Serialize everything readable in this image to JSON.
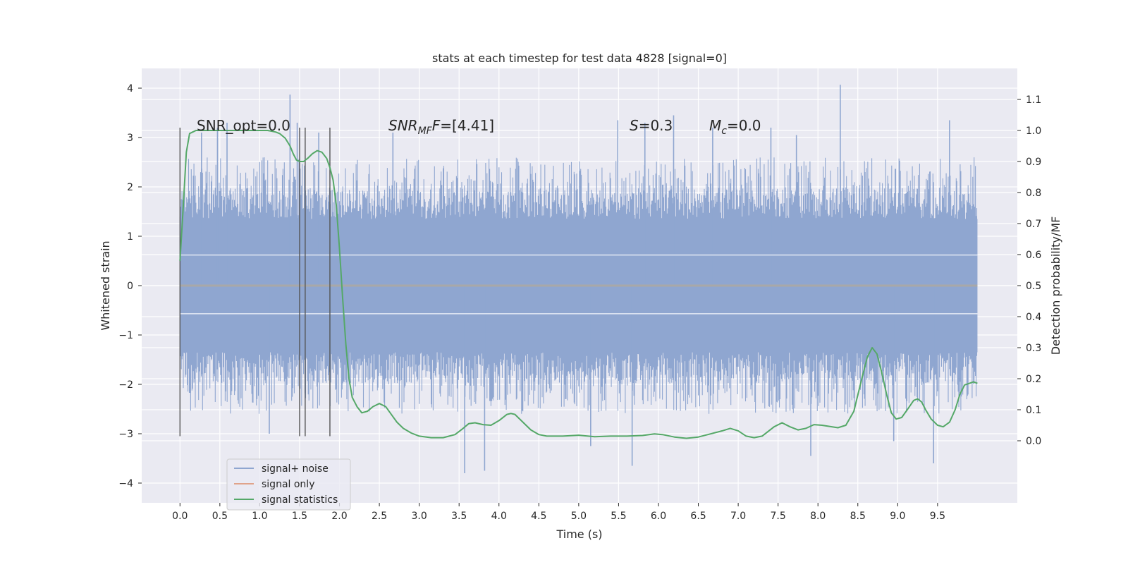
{
  "chart_data": {
    "type": "line",
    "title": "stats at each timestep for test data 4828 [signal=0]",
    "xlabel": "Time (s)",
    "ylabel": "Whitened strain",
    "y2label": "Detection probability/MF",
    "xlim": [
      -0.48,
      10.5
    ],
    "ylim": [
      -4.4,
      4.4
    ],
    "y2lim": [
      -0.2,
      1.2
    ],
    "xticks": [
      0.0,
      0.5,
      1.0,
      1.5,
      2.0,
      2.5,
      3.0,
      3.5,
      4.0,
      4.5,
      5.0,
      5.5,
      6.0,
      6.5,
      7.0,
      7.5,
      8.0,
      8.5,
      9.0,
      9.5
    ],
    "xtick_labels": [
      "0.0",
      "0.5",
      "1.0",
      "1.5",
      "2.0",
      "2.5",
      "3.0",
      "3.5",
      "4.0",
      "4.5",
      "5.0",
      "5.5",
      "6.0",
      "6.5",
      "7.0",
      "7.5",
      "8.0",
      "8.5",
      "9.0",
      "9.5"
    ],
    "yticks": [
      4,
      3,
      2,
      1,
      0,
      -1,
      -2,
      -3,
      -4
    ],
    "ytick_labels": [
      "4",
      "3",
      "2",
      "1",
      "0",
      "−1",
      "−2",
      "−3",
      "−4"
    ],
    "y2ticks": [
      1.1,
      1.0,
      0.9,
      0.8,
      0.7,
      0.6,
      0.5,
      0.4,
      0.3,
      0.2,
      0.1,
      0.0
    ],
    "y2tick_labels": [
      "1.1",
      "1.0",
      "0.9",
      "0.8",
      "0.7",
      "0.6",
      "0.5",
      "0.4",
      "0.3",
      "0.2",
      "0.1",
      "0.0"
    ],
    "grid": true,
    "legend_position": "lower-left",
    "annotations": {
      "snr_opt": "SNR_opt=0.0",
      "snr_mf_main": "SNR",
      "snr_mf_sub": "MF",
      "snr_mf_rest": "=[4.41]",
      "s_main": "S",
      "s_rest": "=0.3",
      "mc_main": "M",
      "mc_sub": "c",
      "mc_rest": "=0.0"
    },
    "noise_series": {
      "name": "signal+ noise",
      "color": "#8fa6d0",
      "t_start": 0.0,
      "t_end": 10.0,
      "count": 1200,
      "core_band": [
        -1.35,
        1.35
      ],
      "typical_max": 2.2,
      "spikes": [
        {
          "x": 0.27,
          "y": 3.1
        },
        {
          "x": 0.47,
          "y": 3.2
        },
        {
          "x": 0.59,
          "y": 3.3
        },
        {
          "x": 1.38,
          "y": 3.87
        },
        {
          "x": 1.47,
          "y": 3.3
        },
        {
          "x": 1.74,
          "y": 3.1
        },
        {
          "x": 2.67,
          "y": 3.1
        },
        {
          "x": 5.49,
          "y": 3.35
        },
        {
          "x": 5.83,
          "y": 3.3
        },
        {
          "x": 6.19,
          "y": 3.45
        },
        {
          "x": 6.68,
          "y": 3.2
        },
        {
          "x": 7.41,
          "y": 3.2
        },
        {
          "x": 7.73,
          "y": 3.05
        },
        {
          "x": 8.28,
          "y": 4.07
        },
        {
          "x": 9.65,
          "y": 3.35
        },
        {
          "x": 1.12,
          "y": -3.0
        },
        {
          "x": 3.57,
          "y": -3.8
        },
        {
          "x": 3.82,
          "y": -3.75
        },
        {
          "x": 5.15,
          "y": -3.25
        },
        {
          "x": 5.67,
          "y": -3.65
        },
        {
          "x": 7.91,
          "y": -3.45
        },
        {
          "x": 8.95,
          "y": -3.15
        },
        {
          "x": 9.45,
          "y": -3.6
        }
      ]
    },
    "signal_only": {
      "name": "signal only",
      "color": "#e0a38a",
      "value": 0.0
    },
    "signal_statistics": {
      "name": "signal statistics",
      "color": "#55a868",
      "x": [
        0.0,
        0.04,
        0.08,
        0.12,
        0.16,
        0.2,
        0.3,
        0.4,
        0.6,
        0.8,
        1.0,
        1.1,
        1.2,
        1.25,
        1.32,
        1.38,
        1.42,
        1.46,
        1.5,
        1.55,
        1.6,
        1.66,
        1.72,
        1.78,
        1.84,
        1.88,
        1.92,
        1.96,
        2.0,
        2.04,
        2.08,
        2.12,
        2.16,
        2.22,
        2.28,
        2.35,
        2.42,
        2.5,
        2.58,
        2.65,
        2.72,
        2.8,
        2.9,
        3.0,
        3.15,
        3.3,
        3.45,
        3.55,
        3.62,
        3.7,
        3.8,
        3.9,
        4.0,
        4.1,
        4.15,
        4.2,
        4.3,
        4.4,
        4.5,
        4.6,
        4.8,
        5.0,
        5.2,
        5.4,
        5.6,
        5.8,
        5.95,
        6.05,
        6.2,
        6.35,
        6.5,
        6.65,
        6.8,
        6.9,
        7.0,
        7.1,
        7.2,
        7.3,
        7.45,
        7.55,
        7.65,
        7.75,
        7.85,
        7.95,
        8.05,
        8.15,
        8.25,
        8.35,
        8.45,
        8.55,
        8.62,
        8.68,
        8.74,
        8.8,
        8.86,
        8.92,
        8.98,
        9.05,
        9.12,
        9.2,
        9.25,
        9.3,
        9.35,
        9.42,
        9.5,
        9.57,
        9.65,
        9.72,
        9.78,
        9.84,
        9.9,
        9.95,
        10.0
      ],
      "y": [
        0.58,
        0.75,
        0.93,
        0.99,
        0.995,
        1.0,
        1.0,
        1.0,
        1.0,
        1.0,
        1.0,
        1.0,
        0.995,
        0.99,
        0.975,
        0.95,
        0.925,
        0.905,
        0.9,
        0.9,
        0.91,
        0.925,
        0.935,
        0.93,
        0.91,
        0.88,
        0.84,
        0.76,
        0.62,
        0.46,
        0.31,
        0.2,
        0.14,
        0.11,
        0.09,
        0.095,
        0.11,
        0.12,
        0.11,
        0.085,
        0.06,
        0.04,
        0.025,
        0.015,
        0.01,
        0.01,
        0.02,
        0.04,
        0.055,
        0.058,
        0.052,
        0.05,
        0.065,
        0.085,
        0.088,
        0.085,
        0.06,
        0.035,
        0.02,
        0.015,
        0.015,
        0.018,
        0.013,
        0.015,
        0.015,
        0.017,
        0.022,
        0.02,
        0.012,
        0.008,
        0.012,
        0.022,
        0.032,
        0.04,
        0.032,
        0.015,
        0.01,
        0.015,
        0.045,
        0.058,
        0.045,
        0.035,
        0.04,
        0.052,
        0.05,
        0.046,
        0.042,
        0.05,
        0.095,
        0.2,
        0.27,
        0.3,
        0.28,
        0.22,
        0.15,
        0.09,
        0.07,
        0.075,
        0.1,
        0.13,
        0.135,
        0.125,
        0.1,
        0.07,
        0.05,
        0.045,
        0.06,
        0.1,
        0.15,
        0.18,
        0.185,
        0.19,
        0.185
      ]
    },
    "vlines": [
      {
        "x": 0.0,
        "ymin": -3.05,
        "ymax": 3.2
      },
      {
        "x": 1.5,
        "ymin": -3.05,
        "ymax": 3.2
      },
      {
        "x": 1.57,
        "ymin": -3.05,
        "ymax": 3.2
      },
      {
        "x": 1.88,
        "ymin": -3.05,
        "ymax": 3.2
      }
    ],
    "legend": [
      "signal+ noise",
      "signal only",
      "signal statistics"
    ]
  }
}
